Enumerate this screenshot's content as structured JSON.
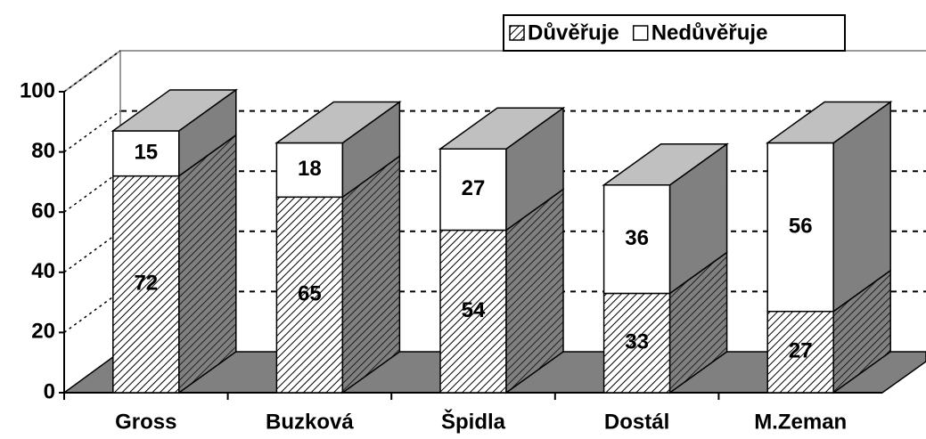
{
  "chart_data": {
    "type": "bar3d-stacked",
    "categories": [
      "Gross",
      "Buzková",
      "Špidla",
      "Dostál",
      "M.Zeman"
    ],
    "series": [
      {
        "name": "Důvěřuje",
        "color": "#000000",
        "pattern": "hatch",
        "values": [
          72,
          65,
          54,
          33,
          27
        ]
      },
      {
        "name": "Nedůvěřuje",
        "color": "#ffffff",
        "values": [
          15,
          18,
          27,
          36,
          56
        ]
      }
    ],
    "ylim": [
      0,
      100
    ],
    "yticks": [
      0,
      20,
      40,
      60,
      80,
      100
    ],
    "grid": true,
    "legend": "top-right"
  }
}
